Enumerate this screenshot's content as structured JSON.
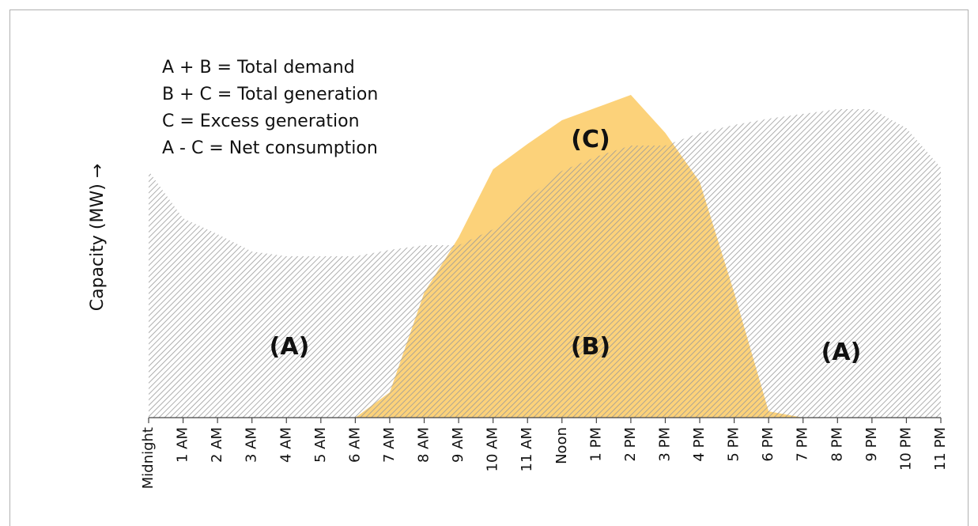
{
  "chart_data": {
    "type": "area",
    "ylabel": "Capacity (MW) →",
    "annotations": [
      "A + B = Total demand",
      "B + C = Total generation",
      "C = Excess generation",
      "A - C = Net consumption"
    ],
    "region_labels": [
      "(A)",
      "(B)",
      "(C)",
      "(A)"
    ],
    "categories": [
      "Midnight",
      "1 AM",
      "2 AM",
      "3 AM",
      "4 AM",
      "5 AM",
      "6 AM",
      "7 AM",
      "8 AM",
      "9 AM",
      "10 AM",
      "11 AM",
      "Noon",
      "1 PM",
      "2 PM",
      "3 PM",
      "4 PM",
      "5 PM",
      "6 PM",
      "7 PM",
      "8 PM",
      "9 PM",
      "10 PM",
      "11 PM"
    ],
    "series": [
      {
        "color": "#fcd27a",
        "values": [
          0,
          0,
          0,
          0,
          0,
          0,
          0,
          8,
          39.5,
          57,
          78.5,
          86.5,
          94,
          98,
          102,
          90,
          74.5,
          39.5,
          2,
          0,
          0,
          0,
          0,
          0
        ]
      },
      {
        "color": "#8a8a8a",
        "values": [
          78,
          63,
          58,
          52.5,
          51,
          51,
          51,
          53,
          54.5,
          54.5,
          59.5,
          69.5,
          78,
          82.5,
          86,
          86,
          90,
          92.5,
          94.5,
          96,
          97.5,
          97.5,
          91.5,
          79
        ]
      }
    ],
    "ylim": [
      0,
      110
    ]
  }
}
